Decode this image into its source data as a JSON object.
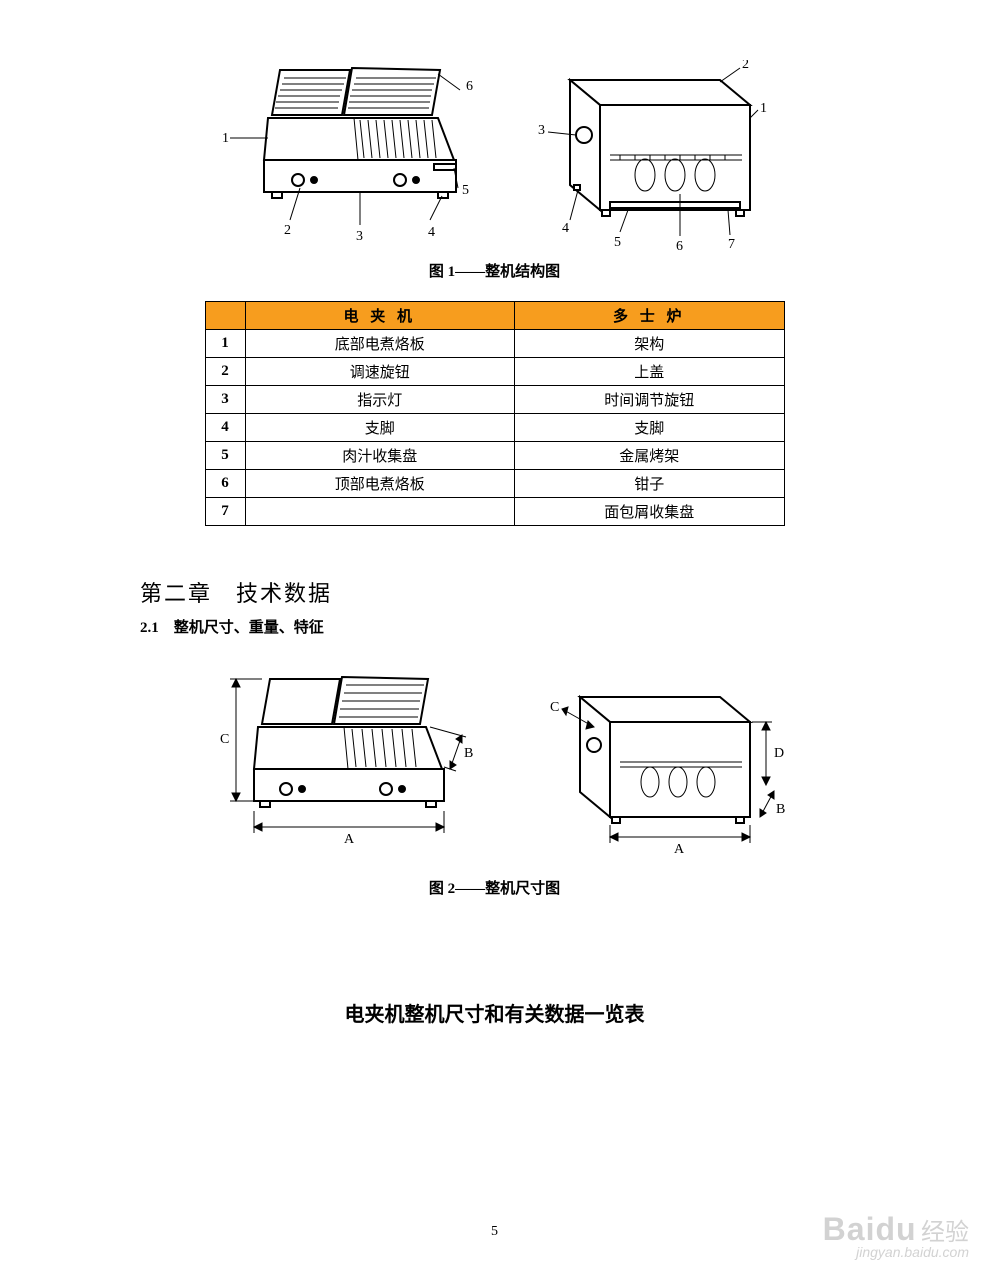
{
  "figure1": {
    "caption": "图 1——整机结构图",
    "left_labels": [
      "1",
      "2",
      "3",
      "4",
      "5",
      "6"
    ],
    "right_labels": [
      "1",
      "2",
      "3",
      "4",
      "5",
      "6",
      "7"
    ]
  },
  "parts_table": {
    "headers": [
      "",
      "电 夹 机",
      "多 士 炉"
    ],
    "rows": [
      [
        "1",
        "底部电煮烙板",
        "架构"
      ],
      [
        "2",
        "调速旋钮",
        "上盖"
      ],
      [
        "3",
        "指示灯",
        "时间调节旋钮"
      ],
      [
        "4",
        "支脚",
        "支脚"
      ],
      [
        "5",
        "肉汁收集盘",
        "金属烤架"
      ],
      [
        "6",
        "顶部电煮烙板",
        "钳子"
      ],
      [
        "7",
        "",
        "面包屑收集盘"
      ]
    ],
    "col_widths": [
      "40px",
      "270px",
      "270px"
    ],
    "header_bg": "#f79d1e"
  },
  "chapter": "第二章　技术数据",
  "section": "2.1　整机尺寸、重量、特征",
  "figure2": {
    "caption": "图 2——整机尺寸图",
    "left_dims": [
      "A",
      "B",
      "C"
    ],
    "right_dims": [
      "A",
      "B",
      "C",
      "D"
    ]
  },
  "data_table_title": "电夹机整机尺寸和有关数据一览表",
  "page_number": "5",
  "watermark": {
    "brand": "Baidu",
    "cn": "经验",
    "url": "jingyan.baidu.com"
  }
}
